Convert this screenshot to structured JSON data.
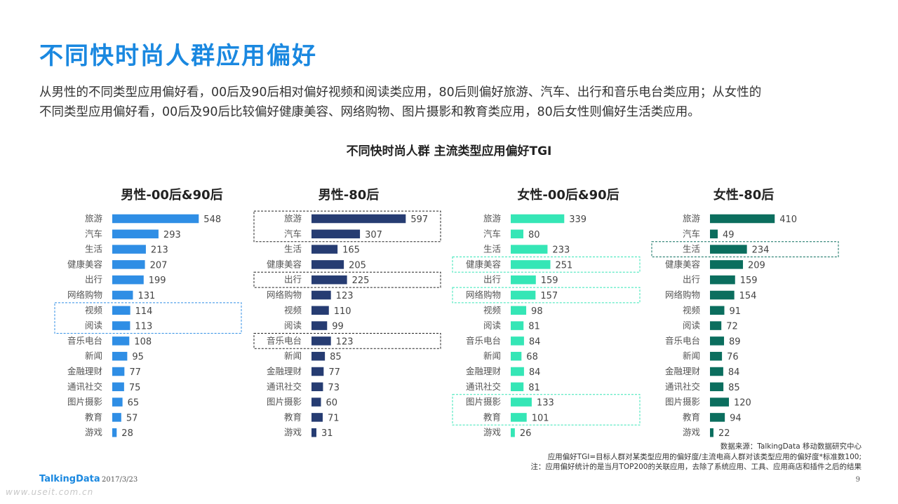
{
  "title": "不同快时尚人群应用偏好",
  "intro": [
    "从男性的不同类型应用偏好看，00后及90后相对偏好视频和阅读类应用，80后则偏好旅游、汽车、出行和音乐电台类应用；从女性的",
    "不同类型应用偏好看，00后及90后比较偏好健康美容、网络购物、图片摄影和教育类应用，80后女性则偏好生活类应用。"
  ],
  "chart_title": "不同快时尚人群  主流类型应用偏好TGI",
  "colors": {
    "title": "#1a88e0",
    "male_young": "#2f8ee5",
    "male_80": "#263c72",
    "female_young": "#35e6b6",
    "female_80": "#0b6e5e",
    "box_blue": "#2f8ee5",
    "box_dark": "#222222",
    "box_teal": "#35e6b6",
    "box_green": "#0b6e5e"
  },
  "chart_data": [
    {
      "type": "bar",
      "title": "男性-00后&90后",
      "color": "#2f8ee5",
      "categories": [
        "旅游",
        "汽车",
        "生活",
        "健康美容",
        "出行",
        "网络购物",
        "视频",
        "阅读",
        "音乐电台",
        "新闻",
        "金融理财",
        "通讯社交",
        "图片摄影",
        "教育",
        "游戏"
      ],
      "values": [
        548,
        293,
        213,
        207,
        199,
        131,
        114,
        113,
        108,
        95,
        77,
        75,
        65,
        57,
        28
      ],
      "highlight_groups": [
        [
          6,
          7
        ]
      ],
      "highlight_color": "#2f8ee5"
    },
    {
      "type": "bar",
      "title": "男性-80后",
      "color": "#263c72",
      "categories": [
        "旅游",
        "汽车",
        "生活",
        "健康美容",
        "出行",
        "网络购物",
        "视频",
        "阅读",
        "音乐电台",
        "新闻",
        "金融理财",
        "通讯社交",
        "图片摄影",
        "教育",
        "游戏"
      ],
      "values": [
        597,
        307,
        165,
        205,
        225,
        123,
        110,
        99,
        123,
        85,
        77,
        73,
        60,
        71,
        31
      ],
      "highlight_groups": [
        [
          0,
          1
        ],
        [
          4
        ],
        [
          8
        ]
      ],
      "highlight_color": "#222222"
    },
    {
      "type": "bar",
      "title": "女性-00后&90后",
      "color": "#35e6b6",
      "categories": [
        "旅游",
        "汽车",
        "生活",
        "健康美容",
        "出行",
        "网络购物",
        "视频",
        "阅读",
        "音乐电台",
        "新闻",
        "金融理财",
        "通讯社交",
        "图片摄影",
        "教育",
        "游戏"
      ],
      "values": [
        339,
        80,
        233,
        251,
        159,
        157,
        98,
        81,
        84,
        68,
        84,
        81,
        133,
        101,
        26
      ],
      "highlight_groups": [
        [
          3
        ],
        [
          5
        ],
        [
          12,
          13
        ]
      ],
      "highlight_color": "#35e6b6"
    },
    {
      "type": "bar",
      "title": "女性-80后",
      "color": "#0b6e5e",
      "categories": [
        "旅游",
        "汽车",
        "生活",
        "健康美容",
        "出行",
        "网络购物",
        "视频",
        "阅读",
        "音乐电台",
        "新闻",
        "金融理财",
        "通讯社交",
        "图片摄影",
        "教育",
        "游戏"
      ],
      "values": [
        410,
        49,
        234,
        209,
        159,
        154,
        91,
        72,
        89,
        76,
        84,
        85,
        120,
        94,
        22
      ],
      "highlight_groups": [
        [
          2
        ]
      ],
      "highlight_color": "#0b6e5e"
    }
  ],
  "notes": [
    "数据来源：TalkingData 移动数据研究中心",
    "应用偏好TGI=目标人群对某类型应用的偏好度/主流电商人群对该类型应用的偏好度*标准数100;",
    "注：应用偏好统计的是当月TOP200的关联应用，去除了系统应用、工具、应用商店和插件之后的结果"
  ],
  "footer": {
    "logo": "TalkingData",
    "date": "2017/3/23",
    "page": "9",
    "watermark": "www.useit.com.cn"
  }
}
